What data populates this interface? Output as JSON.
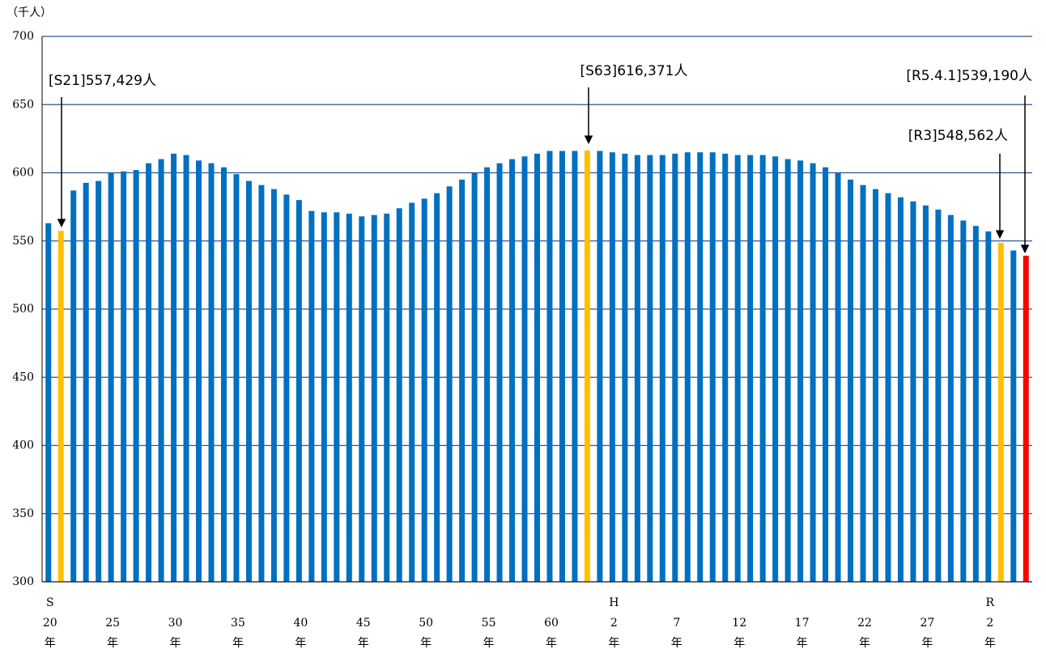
{
  "chart_data": {
    "type": "bar",
    "y_axis_label": "（千人）",
    "ylim": [
      300,
      700
    ],
    "yticks": [
      300,
      350,
      400,
      450,
      500,
      550,
      600,
      650,
      700
    ],
    "grid": true,
    "categories": [
      [
        "S",
        "20",
        "年"
      ],
      null,
      null,
      null,
      null,
      [
        "25",
        "年"
      ],
      null,
      null,
      null,
      null,
      [
        "30",
        "年"
      ],
      null,
      null,
      null,
      null,
      [
        "35",
        "年"
      ],
      null,
      null,
      null,
      null,
      [
        "40",
        "年"
      ],
      null,
      null,
      null,
      null,
      [
        "45",
        "年"
      ],
      null,
      null,
      null,
      null,
      [
        "50",
        "年"
      ],
      null,
      null,
      null,
      null,
      [
        "55",
        "年"
      ],
      null,
      null,
      null,
      null,
      [
        "60",
        "年"
      ],
      null,
      null,
      null,
      null,
      [
        "H",
        "2",
        "年"
      ],
      null,
      null,
      null,
      null,
      [
        "7",
        "年"
      ],
      null,
      null,
      null,
      null,
      [
        "12",
        "年"
      ],
      null,
      null,
      null,
      null,
      [
        "17",
        "年"
      ],
      null,
      null,
      null,
      null,
      [
        "22",
        "年"
      ],
      null,
      null,
      null,
      null,
      [
        "27",
        "年"
      ],
      null,
      null,
      null,
      null,
      [
        "R",
        "2",
        "年"
      ],
      null,
      null,
      null
    ],
    "values": [
      563,
      557.429,
      587,
      592.6,
      594,
      600,
      601,
      602,
      607,
      610,
      614,
      613,
      609,
      607,
      604,
      599,
      594,
      591,
      588,
      584,
      580,
      572,
      571,
      571,
      570,
      568,
      569,
      570,
      574,
      578,
      581,
      585,
      590,
      595,
      600,
      604,
      607,
      610,
      612,
      614,
      616,
      616,
      616,
      616.371,
      616,
      615,
      614,
      613,
      613,
      613,
      614,
      615,
      615,
      615,
      614,
      613,
      613,
      613,
      612,
      610,
      609,
      607,
      604,
      600,
      595,
      591,
      588,
      585,
      582,
      579,
      576,
      573,
      569,
      565,
      561,
      557,
      548.562,
      543,
      539.19
    ],
    "colors": [
      "#0070c0",
      "#ffc000",
      "#0070c0",
      "#0070c0",
      "#0070c0",
      "#0070c0",
      "#0070c0",
      "#0070c0",
      "#0070c0",
      "#0070c0",
      "#0070c0",
      "#0070c0",
      "#0070c0",
      "#0070c0",
      "#0070c0",
      "#0070c0",
      "#0070c0",
      "#0070c0",
      "#0070c0",
      "#0070c0",
      "#0070c0",
      "#0070c0",
      "#0070c0",
      "#0070c0",
      "#0070c0",
      "#0070c0",
      "#0070c0",
      "#0070c0",
      "#0070c0",
      "#0070c0",
      "#0070c0",
      "#0070c0",
      "#0070c0",
      "#0070c0",
      "#0070c0",
      "#0070c0",
      "#0070c0",
      "#0070c0",
      "#0070c0",
      "#0070c0",
      "#0070c0",
      "#0070c0",
      "#0070c0",
      "#ffc000",
      "#0070c0",
      "#0070c0",
      "#0070c0",
      "#0070c0",
      "#0070c0",
      "#0070c0",
      "#0070c0",
      "#0070c0",
      "#0070c0",
      "#0070c0",
      "#0070c0",
      "#0070c0",
      "#0070c0",
      "#0070c0",
      "#0070c0",
      "#0070c0",
      "#0070c0",
      "#0070c0",
      "#0070c0",
      "#0070c0",
      "#0070c0",
      "#0070c0",
      "#0070c0",
      "#0070c0",
      "#0070c0",
      "#0070c0",
      "#0070c0",
      "#0070c0",
      "#0070c0",
      "#0070c0",
      "#0070c0",
      "#0070c0",
      "#ffc000",
      "#0070c0",
      "#ff0000"
    ],
    "annotations": [
      "[S21]557,429人",
      "[S63]616,371人",
      "[R5.4.1]539,190人",
      "[R3]548,562人"
    ]
  }
}
